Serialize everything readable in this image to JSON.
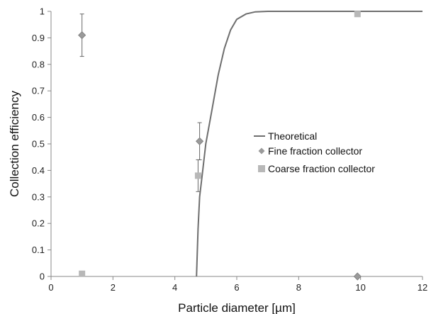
{
  "chart_data": {
    "type": "scatter",
    "title": "",
    "xlabel": "Particle diameter [µm]",
    "ylabel": "Collection efficiency",
    "xlim": [
      0,
      12
    ],
    "ylim": [
      0,
      1
    ],
    "x_ticks": [
      "0",
      "2",
      "4",
      "6",
      "8",
      "10",
      "12"
    ],
    "y_ticks": [
      "0",
      "0.1",
      "0.2",
      "0.3",
      "0.4",
      "0.5",
      "0.6",
      "0.7",
      "0.8",
      "0.9",
      "1"
    ],
    "grid": false,
    "legend_position": "right-middle",
    "series": [
      {
        "name": "Theoretical",
        "kind": "line",
        "color": "#6e6e6e",
        "points": [
          [
            4.7,
            0.0
          ],
          [
            4.75,
            0.18
          ],
          [
            4.8,
            0.3
          ],
          [
            4.9,
            0.4
          ],
          [
            5.0,
            0.5
          ],
          [
            5.2,
            0.63
          ],
          [
            5.4,
            0.76
          ],
          [
            5.6,
            0.86
          ],
          [
            5.8,
            0.93
          ],
          [
            6.0,
            0.97
          ],
          [
            6.3,
            0.99
          ],
          [
            6.6,
            0.998
          ],
          [
            7.0,
            1.0
          ],
          [
            12.0,
            1.0
          ]
        ]
      },
      {
        "name": "Fine fraction collector",
        "kind": "marker",
        "marker": "diamond",
        "color": "#9a9a9a",
        "points": [
          {
            "x": 1.0,
            "y": 0.91,
            "err": 0.08
          },
          {
            "x": 4.8,
            "y": 0.51,
            "err": 0.07
          },
          {
            "x": 9.9,
            "y": 0.0,
            "err": 0.0
          }
        ]
      },
      {
        "name": "Coarse fraction collector",
        "kind": "marker",
        "marker": "square",
        "color": "#b8b8b8",
        "points": [
          {
            "x": 1.0,
            "y": 0.01,
            "err": 0.01
          },
          {
            "x": 4.75,
            "y": 0.38,
            "err": 0.06
          },
          {
            "x": 9.9,
            "y": 0.99,
            "err": 0.01
          }
        ]
      }
    ]
  }
}
